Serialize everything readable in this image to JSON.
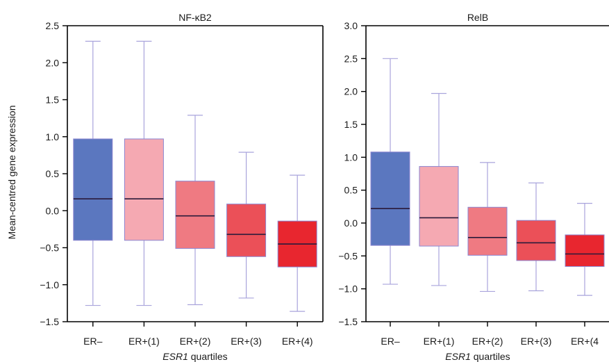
{
  "shared_ylabel": "Mean-centred gene expression",
  "chart_data": [
    {
      "type": "box",
      "title": "NF-κB2",
      "xlabel_italic": "ESR1",
      "xlabel_rest": " quartiles",
      "ylabel": "Mean-centred gene expression",
      "ylim": [
        -1.5,
        2.5
      ],
      "yticks": [
        -1.5,
        -1.0,
        -0.5,
        0.0,
        0.5,
        1.0,
        1.5,
        2.0,
        2.5
      ],
      "ytick_labels": [
        "−1.5",
        "−1.0",
        "−0.5",
        "0.0",
        "0.5",
        "1.0",
        "1.5",
        "2.0",
        "2.5"
      ],
      "categories": [
        "ER–",
        "ER+(1)",
        "ER+(2)",
        "ER+(3)",
        "ER+(4)"
      ],
      "colors": [
        "#5b77bf",
        "#f5a9b2",
        "#ef7a82",
        "#eb5058",
        "#e8262f"
      ],
      "boxes": [
        {
          "min": -1.28,
          "q1": -0.4,
          "median": 0.16,
          "q3": 0.97,
          "max": 2.29
        },
        {
          "min": -1.28,
          "q1": -0.4,
          "median": 0.16,
          "q3": 0.97,
          "max": 2.29
        },
        {
          "min": -1.27,
          "q1": -0.51,
          "median": -0.07,
          "q3": 0.4,
          "max": 1.29
        },
        {
          "min": -1.18,
          "q1": -0.62,
          "median": -0.32,
          "q3": 0.09,
          "max": 0.79
        },
        {
          "min": -1.36,
          "q1": -0.76,
          "median": -0.45,
          "q3": -0.14,
          "max": 0.48
        }
      ]
    },
    {
      "type": "box",
      "title": "RelB",
      "xlabel_italic": "ESR1",
      "xlabel_rest": " quartiles",
      "ylim": [
        -1.5,
        3.0
      ],
      "yticks": [
        -1.5,
        -1.0,
        -0.5,
        0.0,
        0.5,
        1.0,
        1.5,
        2.0,
        2.5,
        3.0
      ],
      "ytick_labels": [
        "−1.5",
        "−1.0",
        "−0.5",
        "0.0",
        "0.5",
        "1.0",
        "1.5",
        "2.0",
        "2.5",
        "3.0"
      ],
      "categories": [
        "ER–",
        "ER+(1)",
        "ER+(2)",
        "ER+(3)",
        "ER+(4"
      ],
      "colors": [
        "#5b77bf",
        "#f5a9b2",
        "#ef7a82",
        "#eb5058",
        "#e8262f"
      ],
      "boxes": [
        {
          "min": -0.93,
          "q1": -0.34,
          "median": 0.22,
          "q3": 1.08,
          "max": 2.5
        },
        {
          "min": -0.95,
          "q1": -0.35,
          "median": 0.08,
          "q3": 0.86,
          "max": 1.97
        },
        {
          "min": -1.04,
          "q1": -0.49,
          "median": -0.22,
          "q3": 0.24,
          "max": 0.92
        },
        {
          "min": -1.03,
          "q1": -0.57,
          "median": -0.3,
          "q3": 0.04,
          "max": 0.61
        },
        {
          "min": -1.1,
          "q1": -0.66,
          "median": -0.47,
          "q3": -0.18,
          "max": 0.3
        }
      ]
    }
  ]
}
